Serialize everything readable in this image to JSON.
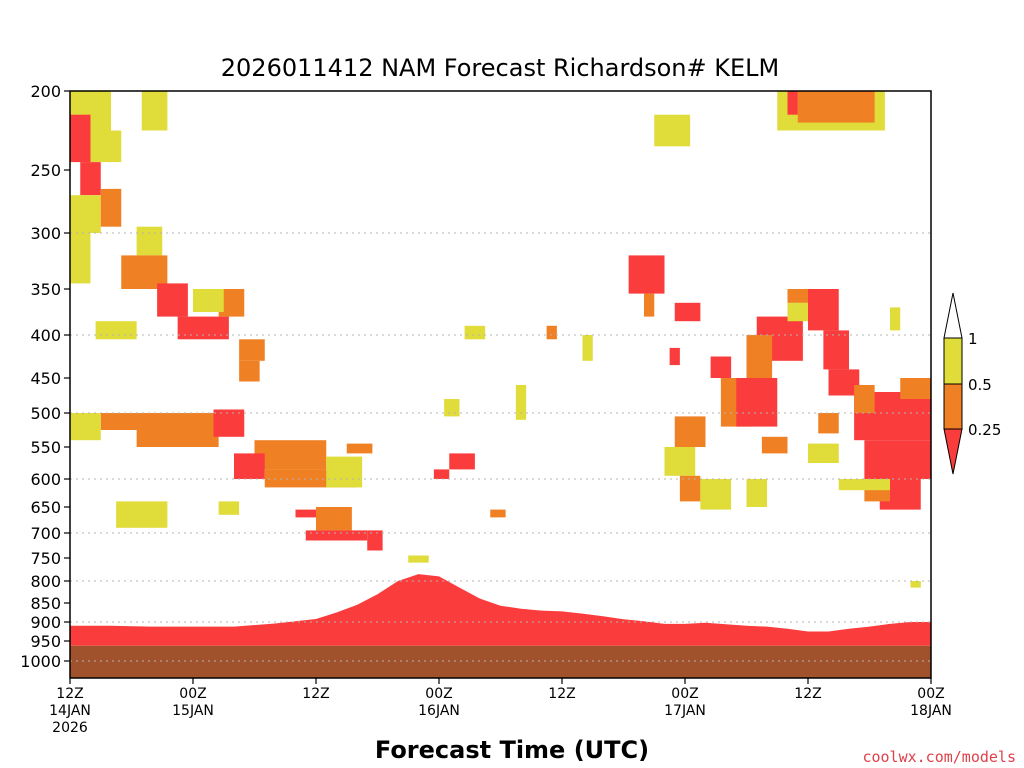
{
  "chart_data": {
    "type": "heatmap",
    "title": "2026011412 NAM Forecast Richardson# KELM",
    "xlabel": "Forecast Time (UTC)",
    "ylabel": "",
    "credit": "coolwx.com/models",
    "y_axis": {
      "scale": "pressure",
      "range": [
        1000,
        200
      ],
      "inverted": true,
      "ticks": [
        "200",
        "250",
        "300",
        "350",
        "400",
        "450",
        "500",
        "550",
        "600",
        "650",
        "700",
        "750",
        "800",
        "850",
        "900",
        "950",
        "1000"
      ],
      "tick_values": [
        200,
        250,
        300,
        350,
        400,
        450,
        500,
        550,
        600,
        650,
        700,
        750,
        800,
        850,
        900,
        950,
        1000
      ],
      "grid_dotted_at": [
        300,
        400,
        500,
        600,
        700,
        800,
        900,
        1000
      ]
    },
    "x_axis": {
      "range": [
        "2026-01-14 12Z",
        "2026-01-18 00Z"
      ],
      "range_hours": [
        0,
        84
      ],
      "ticks": [
        {
          "hour": 0,
          "lines": [
            "12Z",
            "14JAN",
            "2026"
          ]
        },
        {
          "hour": 12,
          "lines": [
            "00Z",
            "15JAN"
          ]
        },
        {
          "hour": 24,
          "lines": [
            "12Z"
          ]
        },
        {
          "hour": 36,
          "lines": [
            "00Z",
            "16JAN"
          ]
        },
        {
          "hour": 48,
          "lines": [
            "12Z"
          ]
        },
        {
          "hour": 60,
          "lines": [
            "00Z",
            "17JAN"
          ]
        },
        {
          "hour": 72,
          "lines": [
            "12Z"
          ]
        },
        {
          "hour": 84,
          "lines": [
            "00Z",
            "18JAN"
          ]
        }
      ]
    },
    "legend": {
      "placement": "right",
      "levels": [
        "1",
        "0.5",
        "0.25"
      ],
      "colors": {
        "gt1": "#ffffff",
        "r05_1": "#e0dc3a",
        "r025_05": "#f08024",
        "lt025": "#fa3c3c"
      }
    },
    "colors": {
      "ground": "#a0522d",
      "y": "#e0dc3a",
      "o": "#f08024",
      "r": "#fa3c3c"
    },
    "surface_pressure": 962,
    "low_red_top": [
      [
        0,
        910
      ],
      [
        4,
        910
      ],
      [
        8,
        912
      ],
      [
        12,
        912
      ],
      [
        16,
        912
      ],
      [
        20,
        904
      ],
      [
        24,
        892
      ],
      [
        26,
        875
      ],
      [
        28,
        855
      ],
      [
        30,
        830
      ],
      [
        32,
        800
      ],
      [
        34,
        785
      ],
      [
        36,
        790
      ],
      [
        38,
        815
      ],
      [
        40,
        840
      ],
      [
        42,
        857
      ],
      [
        44,
        865
      ],
      [
        46,
        870
      ],
      [
        48,
        872
      ],
      [
        50,
        878
      ],
      [
        52,
        885
      ],
      [
        54,
        893
      ],
      [
        56,
        898
      ],
      [
        58,
        905
      ],
      [
        60,
        905
      ],
      [
        62,
        902
      ],
      [
        64,
        906
      ],
      [
        66,
        910
      ],
      [
        68,
        912
      ],
      [
        70,
        918
      ],
      [
        72,
        925
      ],
      [
        74,
        925
      ],
      [
        76,
        918
      ],
      [
        78,
        912
      ],
      [
        80,
        905
      ],
      [
        82,
        900
      ],
      [
        84,
        900
      ]
    ],
    "regions": [
      {
        "c": "y",
        "t": [
          0,
          4
        ],
        "p": [
          200,
          225
        ]
      },
      {
        "c": "y",
        "t": [
          7,
          9.5
        ],
        "p": [
          200,
          225
        ]
      },
      {
        "c": "r",
        "t": [
          0,
          2
        ],
        "p": [
          215,
          245
        ]
      },
      {
        "c": "y",
        "t": [
          2,
          5
        ],
        "p": [
          225,
          245
        ]
      },
      {
        "c": "r",
        "t": [
          1,
          3
        ],
        "p": [
          245,
          270
        ]
      },
      {
        "c": "y",
        "t": [
          0,
          3
        ],
        "p": [
          270,
          300
        ]
      },
      {
        "c": "o",
        "t": [
          3,
          5
        ],
        "p": [
          265,
          295
        ]
      },
      {
        "c": "y",
        "t": [
          0,
          2
        ],
        "p": [
          300,
          345
        ]
      },
      {
        "c": "y",
        "t": [
          6.5,
          9
        ],
        "p": [
          295,
          320
        ]
      },
      {
        "c": "o",
        "t": [
          5,
          9.5
        ],
        "p": [
          320,
          350
        ]
      },
      {
        "c": "r",
        "t": [
          8.5,
          11.5
        ],
        "p": [
          345,
          380
        ]
      },
      {
        "c": "o",
        "t": [
          14.5,
          17
        ],
        "p": [
          350,
          380
        ]
      },
      {
        "c": "y",
        "t": [
          12,
          15
        ],
        "p": [
          350,
          375
        ]
      },
      {
        "c": "r",
        "t": [
          10.5,
          15.5
        ],
        "p": [
          380,
          405
        ]
      },
      {
        "c": "y",
        "t": [
          2.5,
          6.5
        ],
        "p": [
          385,
          405
        ]
      },
      {
        "c": "o",
        "t": [
          16.5,
          19
        ],
        "p": [
          405,
          430
        ]
      },
      {
        "c": "o",
        "t": [
          16.5,
          18.5
        ],
        "p": [
          430,
          455
        ]
      },
      {
        "c": "o",
        "t": [
          3,
          14
        ],
        "p": [
          500,
          525
        ]
      },
      {
        "c": "o",
        "t": [
          6.5,
          14.5
        ],
        "p": [
          525,
          550
        ]
      },
      {
        "c": "r",
        "t": [
          14,
          17
        ],
        "p": [
          495,
          535
        ]
      },
      {
        "c": "y",
        "t": [
          0,
          3
        ],
        "p": [
          500,
          540
        ]
      },
      {
        "c": "o",
        "t": [
          18,
          25
        ],
        "p": [
          540,
          585
        ]
      },
      {
        "c": "o",
        "t": [
          19,
          28
        ],
        "p": [
          585,
          615
        ]
      },
      {
        "c": "r",
        "t": [
          16,
          19
        ],
        "p": [
          560,
          600
        ]
      },
      {
        "c": "y",
        "t": [
          25,
          28.5
        ],
        "p": [
          565,
          615
        ]
      },
      {
        "c": "o",
        "t": [
          27,
          29.5
        ],
        "p": [
          545,
          560
        ]
      },
      {
        "c": "y",
        "t": [
          4.5,
          9.5
        ],
        "p": [
          640,
          690
        ]
      },
      {
        "c": "r",
        "t": [
          22,
          24
        ],
        "p": [
          655,
          670
        ]
      },
      {
        "c": "o",
        "t": [
          24,
          27.5
        ],
        "p": [
          650,
          695
        ]
      },
      {
        "c": "r",
        "t": [
          23,
          29
        ],
        "p": [
          695,
          715
        ]
      },
      {
        "c": "r",
        "t": [
          29,
          30.5
        ],
        "p": [
          695,
          735
        ]
      },
      {
        "c": "y",
        "t": [
          14.5,
          16.5
        ],
        "p": [
          640,
          665
        ]
      },
      {
        "c": "r",
        "t": [
          37,
          39.5
        ],
        "p": [
          560,
          585
        ]
      },
      {
        "c": "r",
        "t": [
          35.5,
          37
        ],
        "p": [
          585,
          600
        ]
      },
      {
        "c": "o",
        "t": [
          41,
          42.5
        ],
        "p": [
          655,
          670
        ]
      },
      {
        "c": "y",
        "t": [
          36.5,
          38
        ],
        "p": [
          480,
          505
        ]
      },
      {
        "c": "y",
        "t": [
          43.5,
          44.5
        ],
        "p": [
          460,
          510
        ]
      },
      {
        "c": "y",
        "t": [
          50,
          51
        ],
        "p": [
          400,
          430
        ]
      },
      {
        "c": "o",
        "t": [
          46.5,
          47.5
        ],
        "p": [
          390,
          405
        ]
      },
      {
        "c": "y",
        "t": [
          38.5,
          40.5
        ],
        "p": [
          390,
          405
        ]
      },
      {
        "c": "y",
        "t": [
          33,
          35
        ],
        "p": [
          745,
          760
        ]
      },
      {
        "c": "y",
        "t": [
          57,
          60.5
        ],
        "p": [
          215,
          235
        ]
      },
      {
        "c": "r",
        "t": [
          54.5,
          58
        ],
        "p": [
          320,
          355
        ]
      },
      {
        "c": "o",
        "t": [
          56,
          57
        ],
        "p": [
          355,
          380
        ]
      },
      {
        "c": "r",
        "t": [
          59,
          61.5
        ],
        "p": [
          365,
          385
        ]
      },
      {
        "c": "r",
        "t": [
          58.5,
          59.5
        ],
        "p": [
          415,
          435
        ]
      },
      {
        "c": "o",
        "t": [
          59,
          62
        ],
        "p": [
          505,
          550
        ]
      },
      {
        "c": "y",
        "t": [
          58,
          61
        ],
        "p": [
          550,
          595
        ]
      },
      {
        "c": "o",
        "t": [
          59.5,
          61.5
        ],
        "p": [
          595,
          640
        ]
      },
      {
        "c": "y",
        "t": [
          61.5,
          64.5
        ],
        "p": [
          600,
          655
        ]
      },
      {
        "c": "r",
        "t": [
          62.5,
          64.5
        ],
        "p": [
          425,
          450
        ]
      },
      {
        "c": "o",
        "t": [
          63.5,
          66.5
        ],
        "p": [
          450,
          520
        ]
      },
      {
        "c": "r",
        "t": [
          65,
          69
        ],
        "p": [
          450,
          520
        ]
      },
      {
        "c": "r",
        "t": [
          67,
          71.5
        ],
        "p": [
          380,
          430
        ]
      },
      {
        "c": "o",
        "t": [
          66,
          68.5
        ],
        "p": [
          400,
          450
        ]
      },
      {
        "c": "y",
        "t": [
          66,
          68
        ],
        "p": [
          600,
          650
        ]
      },
      {
        "c": "o",
        "t": [
          67.5,
          70
        ],
        "p": [
          535,
          560
        ]
      },
      {
        "c": "y",
        "t": [
          70,
          72
        ],
        "p": [
          365,
          385
        ]
      },
      {
        "c": "o",
        "t": [
          70,
          72
        ],
        "p": [
          350,
          365
        ]
      },
      {
        "c": "r",
        "t": [
          72,
          75
        ],
        "p": [
          350,
          395
        ]
      },
      {
        "c": "r",
        "t": [
          73.5,
          76
        ],
        "p": [
          395,
          440
        ]
      },
      {
        "c": "o",
        "t": [
          73,
          75
        ],
        "p": [
          500,
          530
        ]
      },
      {
        "c": "y",
        "t": [
          72,
          75
        ],
        "p": [
          545,
          575
        ]
      },
      {
        "c": "y",
        "t": [
          69,
          79.5
        ],
        "p": [
          200,
          225
        ]
      },
      {
        "c": "o",
        "t": [
          71,
          78.5
        ],
        "p": [
          200,
          220
        ]
      },
      {
        "c": "r",
        "t": [
          70,
          71
        ],
        "p": [
          200,
          215
        ]
      },
      {
        "c": "r",
        "t": [
          74,
          77
        ],
        "p": [
          440,
          475
        ]
      },
      {
        "c": "r",
        "t": [
          76.5,
          84
        ],
        "p": [
          470,
          540
        ]
      },
      {
        "c": "r",
        "t": [
          77.5,
          84
        ],
        "p": [
          540,
          600
        ]
      },
      {
        "c": "r",
        "t": [
          79,
          83
        ],
        "p": [
          600,
          655
        ]
      },
      {
        "c": "o",
        "t": [
          76.5,
          78.5
        ],
        "p": [
          460,
          500
        ]
      },
      {
        "c": "o",
        "t": [
          77.5,
          80
        ],
        "p": [
          600,
          640
        ]
      },
      {
        "c": "y",
        "t": [
          75,
          80
        ],
        "p": [
          600,
          620
        ]
      },
      {
        "c": "o",
        "t": [
          81,
          84
        ],
        "p": [
          450,
          480
        ]
      },
      {
        "c": "y",
        "t": [
          80,
          81
        ],
        "p": [
          370,
          395
        ]
      },
      {
        "c": "y",
        "t": [
          82,
          83
        ],
        "p": [
          800,
          815
        ]
      }
    ]
  }
}
